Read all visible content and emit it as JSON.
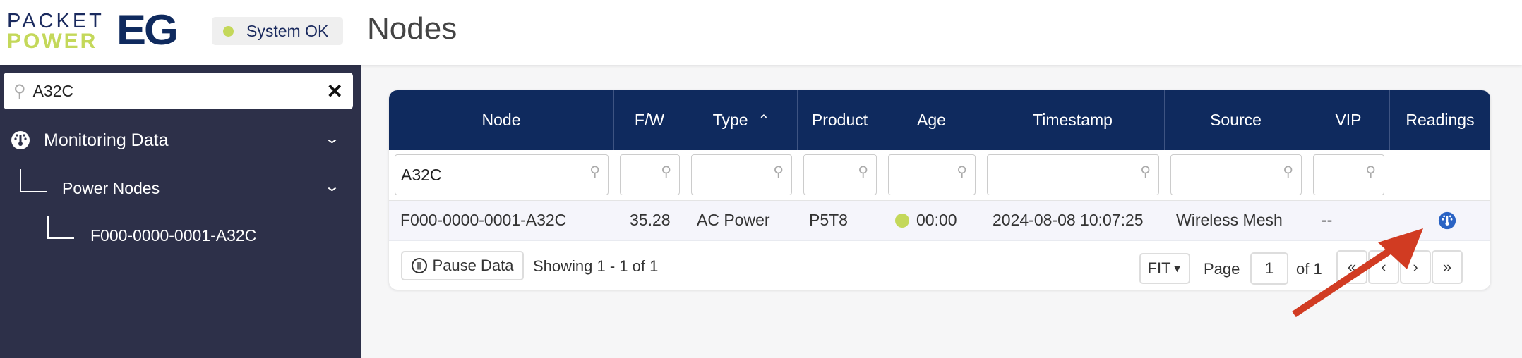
{
  "logo": {
    "line1": "PACKET",
    "line2": "POWER",
    "mark": "EG"
  },
  "status": {
    "label": "System OK",
    "color": "#c4d85a"
  },
  "page_title": "Nodes",
  "sidebar": {
    "search": {
      "value": "A32C",
      "icon": "search-icon",
      "clear_icon": "close-icon"
    },
    "items": [
      {
        "label": "Monitoring Data",
        "icon": "gauge-icon"
      },
      {
        "label": "Power Nodes"
      },
      {
        "label": "F000-0000-0001-A32C"
      }
    ]
  },
  "table": {
    "columns": [
      "Node",
      "F/W",
      "Type",
      "Product",
      "Age",
      "Timestamp",
      "Source",
      "VIP",
      "Readings"
    ],
    "sort": {
      "column": "Type",
      "direction": "ascending"
    },
    "filters": [
      "A32C",
      "",
      "",
      "",
      "",
      "",
      "",
      "",
      null
    ],
    "rows": [
      {
        "node": "F000-0000-0001-A32C",
        "fw": "35.28",
        "type": "AC Power",
        "product": "P5T8",
        "age": "00:00",
        "age_status_color": "#c4d85a",
        "timestamp": "2024-08-08 10:07:25",
        "source": "Wireless Mesh",
        "vip": "--",
        "readings_icon": "gauge-icon"
      }
    ]
  },
  "footer": {
    "pause_label": "Pause Data",
    "showing": "Showing 1 - 1 of 1",
    "fit": "FIT",
    "page_label": "Page",
    "page": "1",
    "of": "of 1"
  },
  "colors": {
    "header_bg": "#0f2a5e",
    "sidebar_bg": "#2d3049",
    "accent": "#c4d85a",
    "annotation_arrow": "#d13b22"
  }
}
